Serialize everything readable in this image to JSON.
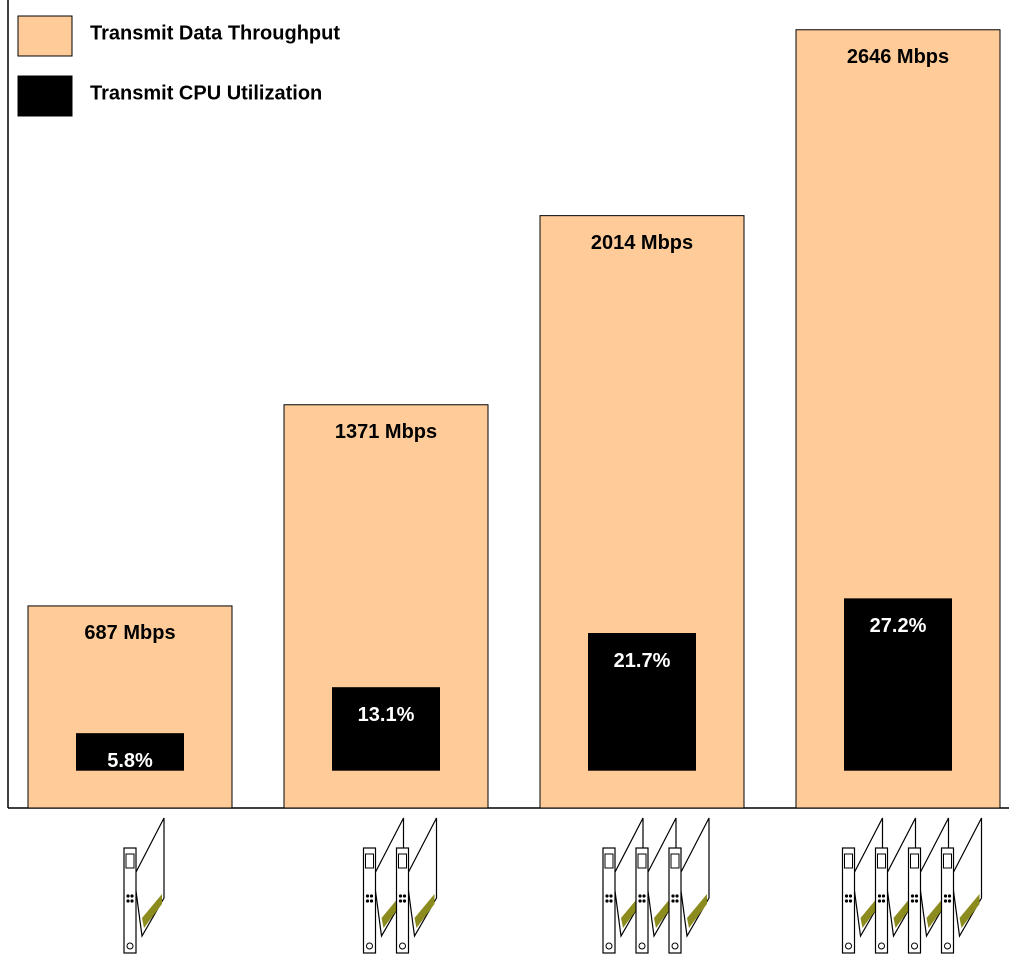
{
  "chart_data": {
    "type": "bar",
    "categories": [
      null,
      null,
      null,
      null
    ],
    "series": [
      {
        "name": "Transmit Data Throughput",
        "color": "#ffcc99",
        "values": [
          687,
          1371,
          2014,
          2646
        ],
        "value_labels": [
          "687 Mbps",
          "1371 Mbps",
          "2014 Mbps",
          "2646 Mbps"
        ]
      },
      {
        "name": "Transmit CPU Utilization",
        "color": "#000000",
        "axis": "y2",
        "values": [
          5.8,
          13.1,
          21.7,
          27.2
        ],
        "value_labels": [
          "5.8%",
          "13.1%",
          "21.7%",
          "27.2%"
        ]
      }
    ],
    "ylim": [
      0,
      2720
    ],
    "y2lim": [
      -6,
      121
    ],
    "legend": "upper left"
  }
}
